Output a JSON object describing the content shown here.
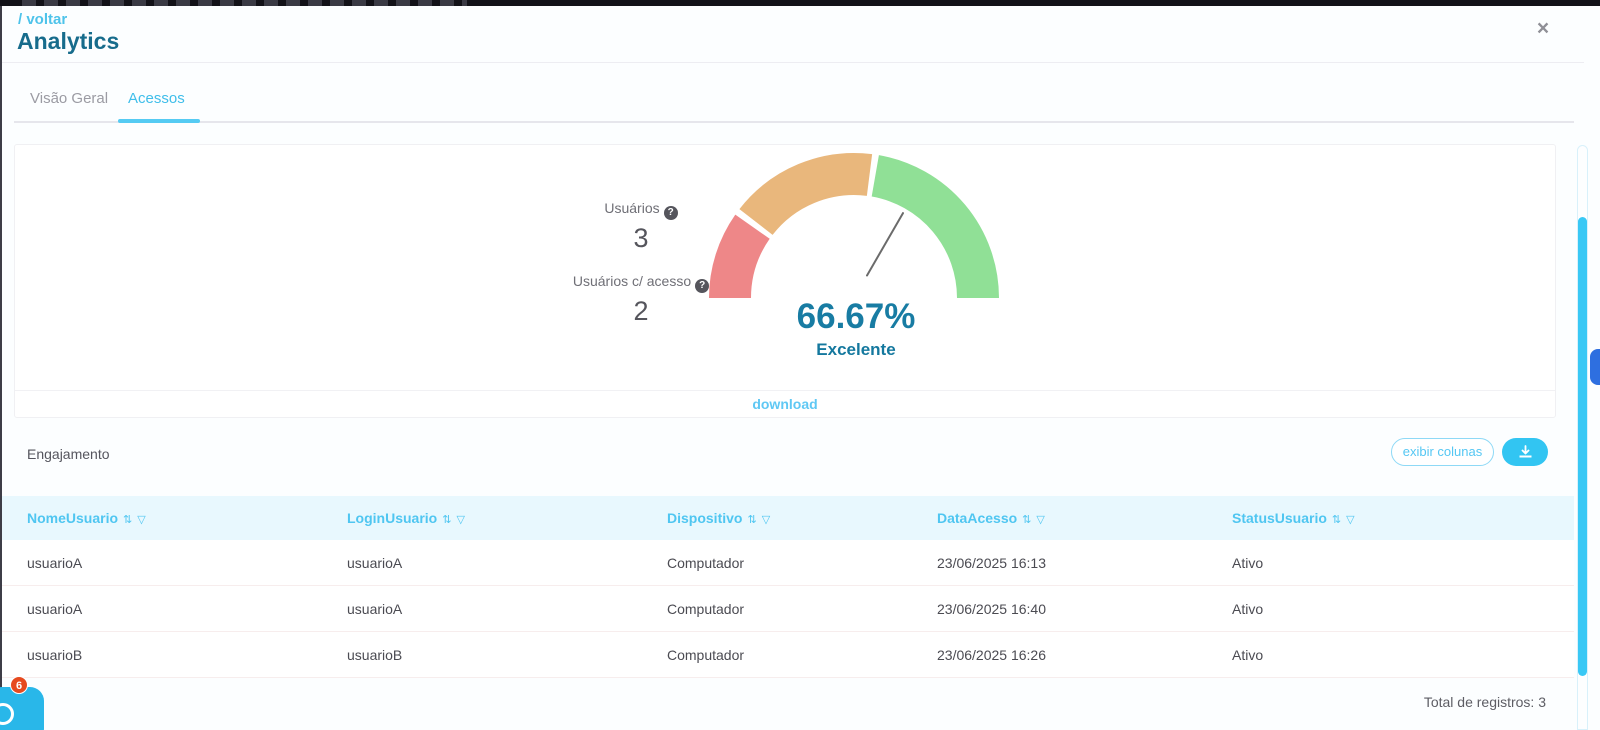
{
  "header": {
    "breadcrumb": "/ voltar",
    "title": "Analytics",
    "close_icon": "×"
  },
  "tabs": [
    {
      "label": "Visão Geral",
      "active": false
    },
    {
      "label": "Acessos",
      "active": true
    }
  ],
  "gauge_card": {
    "stats": [
      {
        "label": "Usuários",
        "help_icon": "?",
        "value": "3"
      },
      {
        "label": "Usuários c/ acesso",
        "help_icon": "?",
        "value": "2"
      }
    ],
    "gauge": {
      "value": 66.67,
      "min": 0,
      "max": 100,
      "needle_color": "#6b6b6b",
      "segments": [
        {
          "from": 0,
          "to": 19.5,
          "color": "#ee8788"
        },
        {
          "from": 21,
          "to": 54,
          "color": "#e9b77c"
        },
        {
          "from": 55.5,
          "to": 100,
          "color": "#90e096"
        }
      ]
    },
    "percent": "66.67%",
    "classification": "Excelente",
    "download_label": "download"
  },
  "engagement": {
    "title": "Engajamento",
    "show_columns_button": "exibir colunas",
    "download_button_icon": "download-tray",
    "table": {
      "columns": [
        "NomeUsuario",
        "LoginUsuario",
        "Dispositivo",
        "DataAcesso",
        "StatusUsuario"
      ],
      "sort_icon": "⇅",
      "filter_icon": "▽",
      "rows": [
        [
          "usuarioA",
          "usuarioA",
          "Computador",
          "23/06/2025 16:13",
          "Ativo"
        ],
        [
          "usuarioA",
          "usuarioA",
          "Computador",
          "23/06/2025 16:40",
          "Ativo"
        ],
        [
          "usuarioB",
          "usuarioB",
          "Computador",
          "23/06/2025 16:26",
          "Ativo"
        ]
      ]
    },
    "total_label": "Total de registros: 3"
  },
  "chat_widget": {
    "badge_count": "6"
  },
  "colors": {
    "accent_cyan": "#38c1ef",
    "teal_dark": "#187ca3",
    "title_teal": "#176c8c",
    "gauge_red": "#ee8788",
    "gauge_orange": "#e9b77c",
    "gauge_green": "#90e096",
    "badge_red": "#e64a1f",
    "scrollbar_cyan": "#39c8f5",
    "side_tab_blue": "#2e6fe0"
  }
}
